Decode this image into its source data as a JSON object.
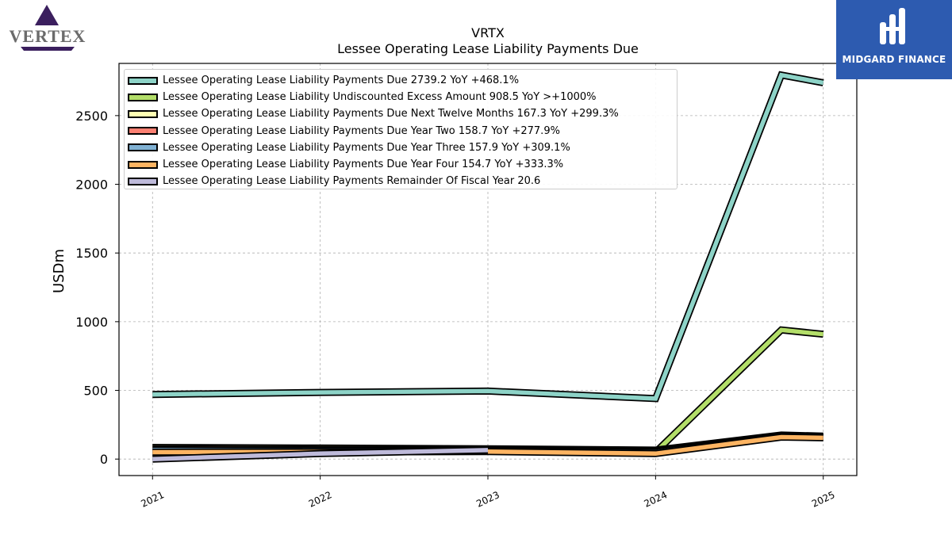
{
  "brand": {
    "left_logo_text": "VERTEX",
    "right_logo_text": "MIDGARD FINANCE",
    "left_color": "#3b1f5e",
    "right_bg": "#2d5bb0"
  },
  "chart_data": {
    "type": "line",
    "title": "VRTX",
    "subtitle": "Lessee Operating Lease Liability Payments Due",
    "xlabel": "",
    "ylabel": "USDm",
    "x": [
      2021.0,
      2022.0,
      2023.0,
      2024.0,
      2024.75,
      2025.0
    ],
    "xticks": [
      "2021",
      "2022",
      "2023",
      "2024",
      "2025"
    ],
    "yticks": [
      "0",
      "500",
      "1000",
      "1500",
      "2000",
      "2500"
    ],
    "xlim": [
      2020.8,
      2025.2
    ],
    "ylim": [
      -120,
      2880
    ],
    "grid": true,
    "legend_position": "upper-left",
    "series": [
      {
        "name": "Lessee Operating Lease Liability Payments Due",
        "legend": "Lessee Operating Lease Liability Payments Due  2739.2 YoY +468.1%",
        "color": "#8dd3c7",
        "values": [
          470,
          485,
          495,
          440,
          2795,
          2739.2
        ]
      },
      {
        "name": "Lessee Operating Lease Liability Undiscounted Excess Amount",
        "legend": "Lessee Operating Lease Liability Undiscounted Excess Amount  908.5 YoY >+1000%",
        "color": "#b3de69",
        "values": [
          null,
          null,
          null,
          50,
          940,
          908.5
        ]
      },
      {
        "name": "Lessee Operating Lease Liability Payments Due Next Twelve Months",
        "legend": "Lessee Operating Lease Liability Payments Due Next Twelve Months  167.3 YoY +299.3%",
        "color": "#ffffb3",
        "values": [
          85,
          80,
          75,
          65,
          175,
          167.3
        ]
      },
      {
        "name": "Lessee Operating Lease Liability Payments Due Year Two",
        "legend": "Lessee Operating Lease Liability Payments Due Year Two  158.7 YoY +277.9%",
        "color": "#fb8072",
        "values": [
          75,
          70,
          68,
          58,
          168,
          158.7
        ]
      },
      {
        "name": "Lessee Operating Lease Liability Payments Due Year Three",
        "legend": "Lessee Operating Lease Liability Payments Due Year Three  157.9 YoY +309.1%",
        "color": "#80b1d3",
        "values": [
          65,
          62,
          62,
          50,
          165,
          157.9
        ]
      },
      {
        "name": "Lessee Operating Lease Liability Payments Due Year Four",
        "legend": "Lessee Operating Lease Liability Payments Due Year Four  154.7 YoY +333.3%",
        "color": "#fdb462",
        "values": [
          50,
          52,
          55,
          40,
          160,
          154.7
        ]
      },
      {
        "name": "Lessee Operating Lease Liability Payments Remainder Of Fiscal Year",
        "legend": "Lessee Operating Lease Liability Payments Remainder Of Fiscal Year  20.6",
        "color": "#bebada",
        "values": [
          0,
          40,
          65,
          null,
          null,
          null
        ]
      }
    ]
  }
}
